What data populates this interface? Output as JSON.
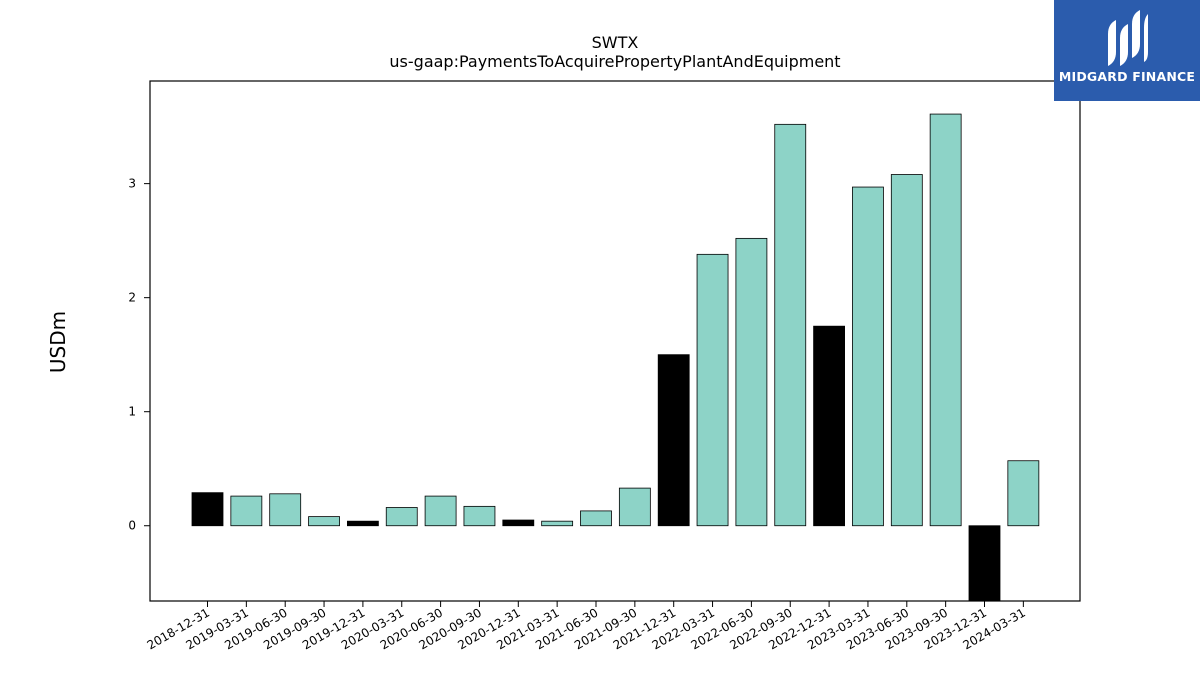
{
  "chart_data": {
    "type": "bar",
    "title": "SWTX",
    "subtitle": "us-gaap:PaymentsToAcquirePropertyPlantAndEquipment",
    "xlabel": "",
    "ylabel": "USDm",
    "ylim": [
      -0.66,
      3.9
    ],
    "yticks": [
      0,
      1,
      2,
      3
    ],
    "grid": false,
    "categories": [
      "2018-12-31",
      "2019-03-31",
      "2019-06-30",
      "2019-09-30",
      "2019-12-31",
      "2020-03-31",
      "2020-06-30",
      "2020-09-30",
      "2020-12-31",
      "2021-03-31",
      "2021-06-30",
      "2021-09-30",
      "2021-12-31",
      "2022-03-31",
      "2022-06-30",
      "2022-09-30",
      "2022-12-31",
      "2023-03-31",
      "2023-06-30",
      "2023-09-30",
      "2023-12-31",
      "2024-03-31"
    ],
    "values": [
      0.29,
      0.26,
      0.28,
      0.08,
      0.04,
      0.16,
      0.26,
      0.17,
      0.05,
      0.04,
      0.13,
      0.33,
      1.5,
      2.38,
      2.52,
      3.52,
      1.75,
      2.97,
      3.08,
      3.61,
      -0.66,
      0.57
    ],
    "bar_colors": [
      "#000000",
      "#8dd3c7",
      "#8dd3c7",
      "#8dd3c7",
      "#000000",
      "#8dd3c7",
      "#8dd3c7",
      "#8dd3c7",
      "#000000",
      "#8dd3c7",
      "#8dd3c7",
      "#8dd3c7",
      "#000000",
      "#8dd3c7",
      "#8dd3c7",
      "#8dd3c7",
      "#000000",
      "#8dd3c7",
      "#8dd3c7",
      "#8dd3c7",
      "#000000",
      "#8dd3c7"
    ],
    "colors": {
      "quarterly": "#8dd3c7",
      "year_end": "#000000"
    }
  },
  "logo": {
    "text": "MIDGARD FINANCE",
    "background": "#2b5cad"
  }
}
